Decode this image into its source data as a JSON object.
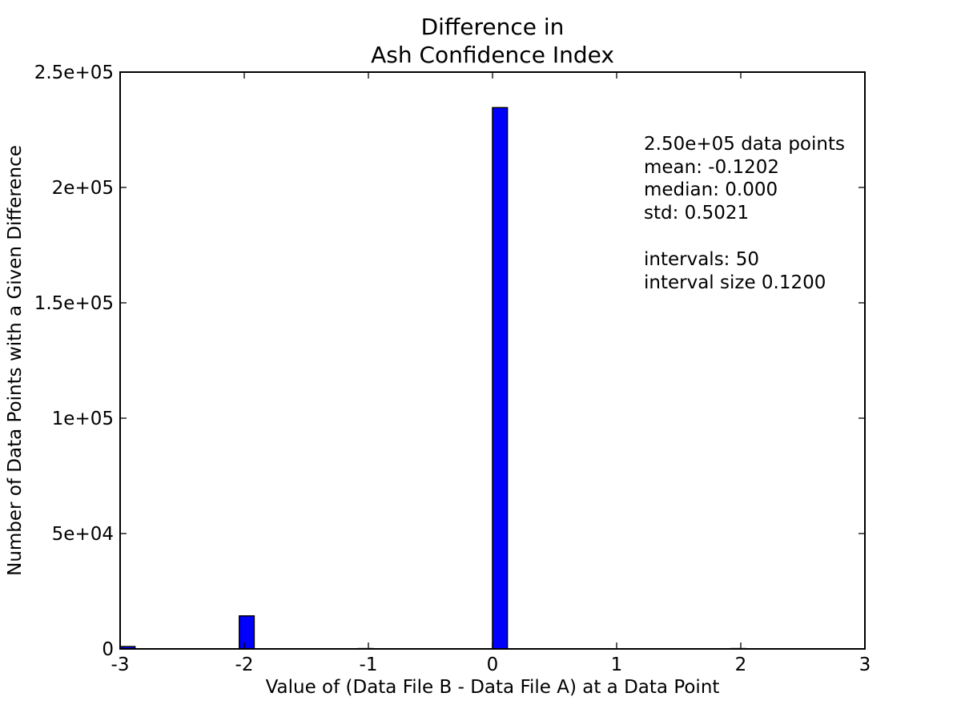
{
  "chart_data": {
    "type": "bar",
    "title_lines": [
      "Difference in",
      "Ash Confidence Index"
    ],
    "xlabel": "Value of (Data File B - Data File A) at a Data Point",
    "ylabel": "Number of Data Points with a Given Difference",
    "xlim": [
      -3,
      3
    ],
    "ylim": [
      0,
      250000
    ],
    "x_ticks": [
      {
        "value": -3,
        "label": "-3"
      },
      {
        "value": -2,
        "label": "-2"
      },
      {
        "value": -1,
        "label": "-1"
      },
      {
        "value": 0,
        "label": "0"
      },
      {
        "value": 1,
        "label": "1"
      },
      {
        "value": 2,
        "label": "2"
      },
      {
        "value": 3,
        "label": "3"
      }
    ],
    "y_ticks": [
      {
        "value": 0,
        "label": "0"
      },
      {
        "value": 50000,
        "label": "5e+04"
      },
      {
        "value": 100000,
        "label": "1e+05"
      },
      {
        "value": 150000,
        "label": "1.5e+05"
      },
      {
        "value": 200000,
        "label": "2e+05"
      },
      {
        "value": 250000,
        "label": "2.5e+05"
      }
    ],
    "bin_width": 0.12,
    "bars": [
      {
        "start": -3.0,
        "value": 1000
      },
      {
        "start": -2.04,
        "value": 14300
      },
      {
        "start": -1.08,
        "value": 150
      },
      {
        "start": 0.0,
        "value": 234600
      },
      {
        "start": 1.92,
        "value": 150
      }
    ],
    "bar_color": "#0000ff",
    "edge_color": "#000000",
    "grid": false,
    "annotation_lines": [
      "2.50e+05 data points",
      "mean: -0.1202",
      "median: 0.000",
      "std: 0.5021",
      "",
      "intervals: 50",
      "interval size 0.1200"
    ]
  }
}
